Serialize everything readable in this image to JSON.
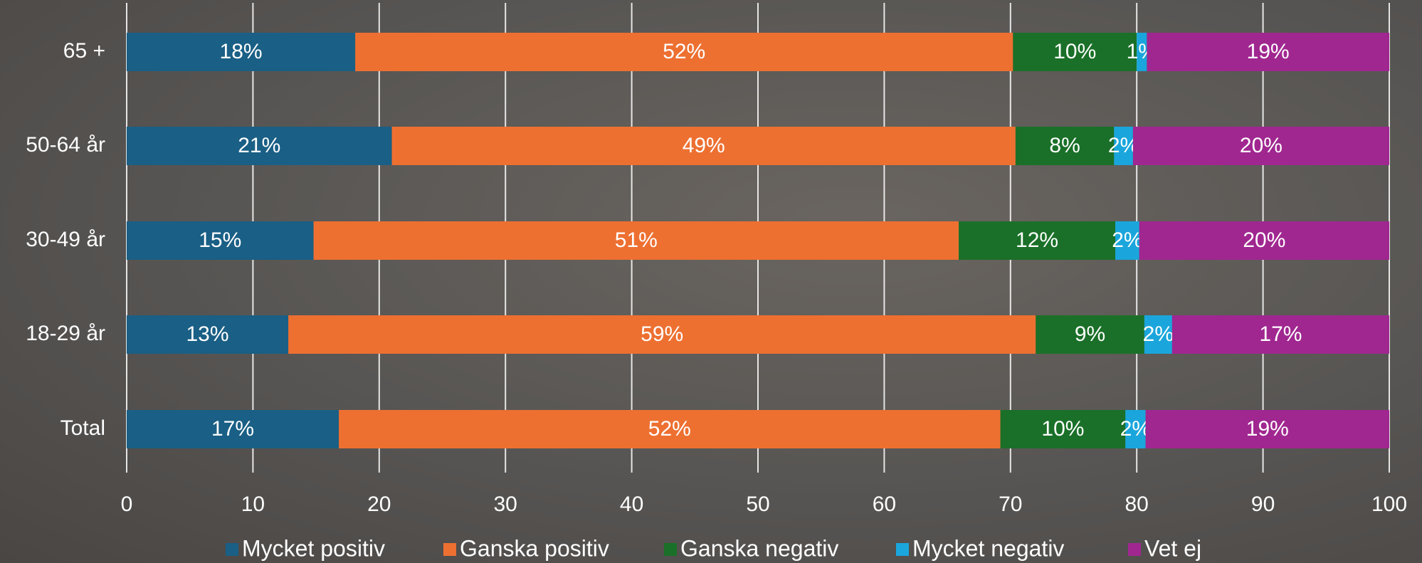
{
  "chart_data": {
    "type": "stacked-bar-horizontal",
    "categories": [
      "65 +",
      "50-64 år",
      "30-49 år",
      "18-29 år",
      "Total"
    ],
    "series": [
      {
        "name": "Mycket positiv",
        "color": "#1a5f85",
        "values": [
          18.1,
          21.0,
          14.8,
          12.8,
          16.8
        ],
        "value_labels": [
          "18%",
          "21%",
          "15%",
          "13%",
          "17%"
        ]
      },
      {
        "name": "Ganska positiv",
        "color": "#ed7031",
        "values": [
          52.1,
          49.4,
          51.1,
          59.2,
          52.4
        ],
        "value_labels": [
          "52%",
          "49%",
          "51%",
          "59%",
          "52%"
        ]
      },
      {
        "name": "Ganska negativ",
        "color": "#1a7028",
        "values": [
          9.8,
          7.8,
          12.4,
          8.6,
          9.9
        ],
        "value_labels": [
          "10%",
          "8%",
          "12%",
          "9%",
          "10%"
        ]
      },
      {
        "name": "Mycket negativ",
        "color": "#1aa6dc",
        "values": [
          0.8,
          1.5,
          1.9,
          2.2,
          1.6
        ],
        "value_labels": [
          "1%",
          "2%",
          "2%",
          "2%",
          "2%"
        ]
      },
      {
        "name": "Vet ej",
        "color": "#a02790",
        "values": [
          19.2,
          20.3,
          19.8,
          17.2,
          19.3
        ],
        "value_labels": [
          "19%",
          "20%",
          "20%",
          "17%",
          "19%"
        ]
      }
    ],
    "xlim": [
      0,
      100
    ],
    "xticks": [
      0,
      10,
      20,
      30,
      40,
      50,
      60,
      70,
      80,
      90,
      100
    ],
    "grid": true,
    "legend": "bottom"
  }
}
